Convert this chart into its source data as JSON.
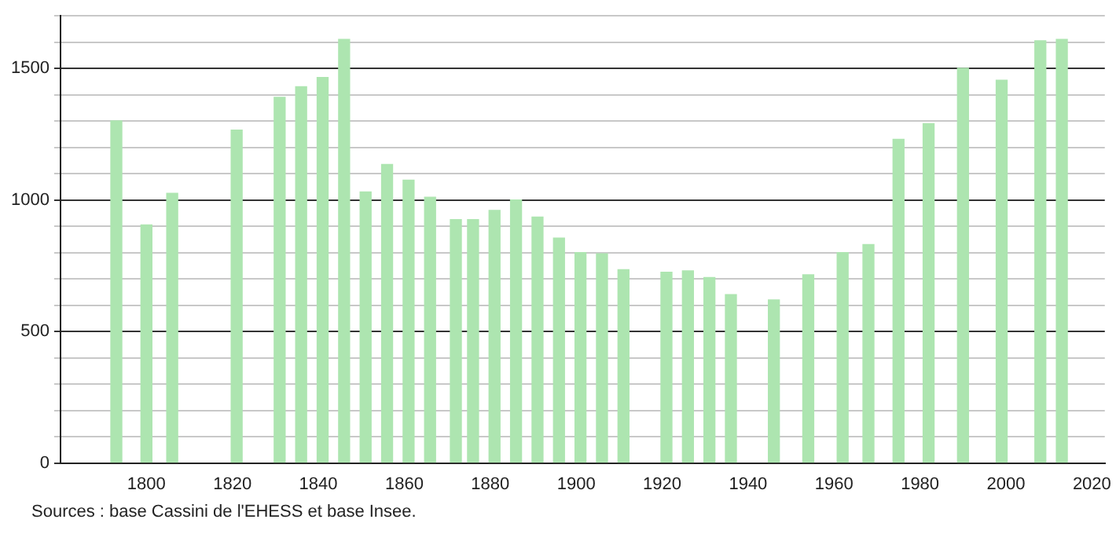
{
  "chart_data": {
    "type": "bar",
    "color": "#ade5b0",
    "x": [
      1793,
      1800,
      1806,
      1821,
      1831,
      1836,
      1841,
      1846,
      1851,
      1856,
      1861,
      1866,
      1872,
      1876,
      1881,
      1886,
      1891,
      1896,
      1901,
      1906,
      1911,
      1921,
      1926,
      1931,
      1936,
      1946,
      1954,
      1962,
      1968,
      1975,
      1982,
      1990,
      1999,
      2008,
      2013
    ],
    "values": [
      1300,
      905,
      1025,
      1265,
      1390,
      1430,
      1465,
      1610,
      1030,
      1135,
      1075,
      1010,
      925,
      925,
      960,
      1000,
      935,
      855,
      800,
      795,
      735,
      725,
      730,
      705,
      640,
      620,
      715,
      800,
      830,
      1230,
      1290,
      1500,
      1455,
      1605,
      1610
    ],
    "xlim": [
      1780,
      2023
    ],
    "xticks": [
      1800,
      1820,
      1840,
      1860,
      1880,
      1900,
      1920,
      1940,
      1960,
      1980,
      2000,
      2020
    ],
    "ylim": [
      0,
      1700
    ],
    "yticks": [
      0,
      {
        "value": 100,
        "label": null
      },
      {
        "value": 200,
        "label": null
      },
      {
        "value": 300,
        "label": null
      },
      {
        "value": 400,
        "label": null
      },
      500,
      {
        "value": 600,
        "label": null
      },
      {
        "value": 700,
        "label": null
      },
      {
        "value": 800,
        "label": null
      },
      {
        "value": 900,
        "label": null
      },
      1000,
      {
        "value": 1100,
        "label": null
      },
      {
        "value": 1200,
        "label": null
      },
      {
        "value": 1300,
        "label": null
      },
      {
        "value": 1400,
        "label": null
      },
      1500,
      {
        "value": 1600,
        "label": null
      },
      {
        "value": 1700,
        "label": null
      }
    ],
    "grid": "y",
    "legend": false,
    "annotations": [
      "Sources : base Cassini de l'EHESS et base Insee."
    ]
  }
}
